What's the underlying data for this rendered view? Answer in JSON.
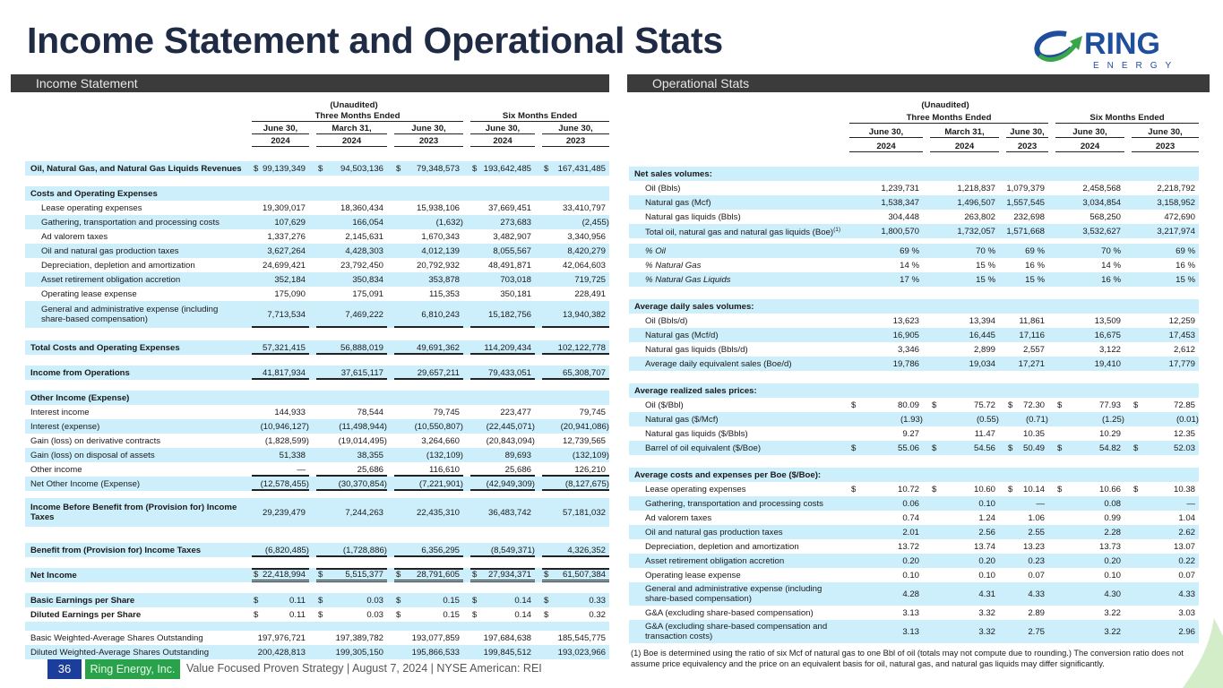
{
  "title": "Income Statement and Operational Stats",
  "logo": {
    "text": "RING",
    "subtext": "ENERGY",
    "colors": {
      "blue": "#1f4e9c",
      "green": "#3aa64a"
    }
  },
  "income_statement": {
    "section_label": "Income Statement",
    "header": {
      "unaudited": "(Unaudited)",
      "three_months": "Three Months Ended",
      "six_months": "Six Months Ended",
      "cols": [
        {
          "month": "June 30,",
          "year": "2024"
        },
        {
          "month": "March 31,",
          "year": "2024"
        },
        {
          "month": "June 30,",
          "year": "2023"
        },
        {
          "month": "June 30,",
          "year": "2024"
        },
        {
          "month": "June 30,",
          "year": "2023"
        }
      ]
    },
    "rows": [
      {
        "label": "Oil, Natural Gas, and Natural Gas Liquids Revenues",
        "values": [
          "99,139,349",
          "94,503,136",
          "79,348,573",
          "193,642,485",
          "167,431,485"
        ]
      },
      {
        "label": "Costs and Operating Expenses",
        "values": [
          "",
          "",
          "",
          "",
          ""
        ]
      },
      {
        "label": "Lease operating expenses",
        "values": [
          "19,309,017",
          "18,360,434",
          "15,938,106",
          "37,669,451",
          "33,410,797"
        ]
      },
      {
        "label": "Gathering, transportation and processing costs",
        "values": [
          "107,629",
          "166,054",
          "(1,632)",
          "273,683",
          "(2,455)"
        ]
      },
      {
        "label": "Ad valorem taxes",
        "values": [
          "1,337,276",
          "2,145,631",
          "1,670,343",
          "3,482,907",
          "3,340,956"
        ]
      },
      {
        "label": "Oil and natural gas production taxes",
        "values": [
          "3,627,264",
          "4,428,303",
          "4,012,139",
          "8,055,567",
          "8,420,279"
        ]
      },
      {
        "label": "Depreciation, depletion and amortization",
        "values": [
          "24,699,421",
          "23,792,450",
          "20,792,932",
          "48,491,871",
          "42,064,603"
        ]
      },
      {
        "label": "Asset retirement obligation accretion",
        "values": [
          "352,184",
          "350,834",
          "353,878",
          "703,018",
          "719,725"
        ]
      },
      {
        "label": "Operating lease expense",
        "values": [
          "175,090",
          "175,091",
          "115,353",
          "350,181",
          "228,491"
        ]
      },
      {
        "label": "General and administrative expense (including share-based compensation)",
        "values": [
          "7,713,534",
          "7,469,222",
          "6,810,243",
          "15,182,756",
          "13,940,382"
        ]
      },
      {
        "label": "Total Costs and Operating Expenses",
        "values": [
          "57,321,415",
          "56,888,019",
          "49,691,362",
          "114,209,434",
          "102,122,778"
        ]
      },
      {
        "label": "Income from Operations",
        "values": [
          "41,817,934",
          "37,615,117",
          "29,657,211",
          "79,433,051",
          "65,308,707"
        ]
      },
      {
        "label": "Other Income (Expense)",
        "values": [
          "",
          "",
          "",
          "",
          ""
        ]
      },
      {
        "label": "Interest income",
        "values": [
          "144,933",
          "78,544",
          "79,745",
          "223,477",
          "79,745"
        ]
      },
      {
        "label": "Interest (expense)",
        "values": [
          "(10,946,127)",
          "(11,498,944)",
          "(10,550,807)",
          "(22,445,071)",
          "(20,941,086)"
        ]
      },
      {
        "label": "Gain (loss) on derivative contracts",
        "values": [
          "(1,828,599)",
          "(19,014,495)",
          "3,264,660",
          "(20,843,094)",
          "12,739,565"
        ]
      },
      {
        "label": "Gain (loss) on disposal of assets",
        "values": [
          "51,338",
          "38,355",
          "(132,109)",
          "89,693",
          "(132,109)"
        ]
      },
      {
        "label": "Other income",
        "values": [
          "—",
          "25,686",
          "116,610",
          "25,686",
          "126,210"
        ]
      },
      {
        "label": "Net Other Income (Expense)",
        "values": [
          "(12,578,455)",
          "(30,370,854)",
          "(7,221,901)",
          "(42,949,309)",
          "(8,127,675)"
        ]
      },
      {
        "label": "Income Before Benefit from (Provision for) Income Taxes",
        "values": [
          "29,239,479",
          "7,244,263",
          "22,435,310",
          "36,483,742",
          "57,181,032"
        ]
      },
      {
        "label": "Benefit from (Provision for) Income Taxes",
        "values": [
          "(6,820,485)",
          "(1,728,886)",
          "6,356,295",
          "(8,549,371)",
          "4,326,352"
        ]
      },
      {
        "label": "Net Income",
        "values": [
          "22,418,994",
          "5,515,377",
          "28,791,605",
          "27,934,371",
          "61,507,384"
        ]
      },
      {
        "label": "Basic Earnings per Share",
        "values": [
          "0.11",
          "0.03",
          "0.15",
          "0.14",
          "0.33"
        ]
      },
      {
        "label": "Diluted Earnings per Share",
        "values": [
          "0.11",
          "0.03",
          "0.15",
          "0.14",
          "0.32"
        ]
      },
      {
        "label": "",
        "values": [
          "",
          "",
          "",
          "",
          ""
        ]
      },
      {
        "label": "Basic Weighted-Average Shares Outstanding",
        "values": [
          "197,976,721",
          "197,389,782",
          "193,077,859",
          "197,684,638",
          "185,545,775"
        ]
      },
      {
        "label": "Diluted Weighted-Average Shares Outstanding",
        "values": [
          "200,428,813",
          "199,305,150",
          "195,866,533",
          "199,845,512",
          "193,023,966"
        ]
      }
    ]
  },
  "operational_stats": {
    "section_label": "Operational Stats",
    "header": {
      "unaudited": "(Unaudited)",
      "three_months": "Three Months Ended",
      "six_months": "Six Months Ended",
      "cols": [
        {
          "month": "June 30,",
          "year": "2024"
        },
        {
          "month": "March 31,",
          "year": "2024"
        },
        {
          "month": "June 30,",
          "year": "2023"
        },
        {
          "month": "June 30,",
          "year": "2024"
        },
        {
          "month": "June 30,",
          "year": "2023"
        }
      ]
    },
    "rows": [
      {
        "label": "Net sales volumes:",
        "values": [
          "",
          "",
          "",
          "",
          ""
        ]
      },
      {
        "label": "Oil (Bbls)",
        "values": [
          "1,239,731",
          "1,218,837",
          "1,079,379",
          "2,458,568",
          "2,218,792"
        ]
      },
      {
        "label": "Natural gas (Mcf)",
        "values": [
          "1,538,347",
          "1,496,507",
          "1,557,545",
          "3,034,854",
          "3,158,952"
        ]
      },
      {
        "label": "Natural gas liquids (Bbls)",
        "values": [
          "304,448",
          "263,802",
          "232,698",
          "568,250",
          "472,690"
        ]
      },
      {
        "label": "Total oil, natural gas and natural gas liquids (Boe)",
        "sup": "(1)",
        "values": [
          "1,800,570",
          "1,732,057",
          "1,571,668",
          "3,532,627",
          "3,217,974"
        ]
      },
      {
        "label": "% Oil",
        "values": [
          "69 %",
          "70 %",
          "69 %",
          "70 %",
          "69 %"
        ]
      },
      {
        "label": "% Natural Gas",
        "values": [
          "14 %",
          "15 %",
          "16 %",
          "14 %",
          "16 %"
        ]
      },
      {
        "label": "% Natural Gas Liquids",
        "values": [
          "17 %",
          "15 %",
          "15 %",
          "16 %",
          "15 %"
        ]
      },
      {
        "label": "Average daily sales volumes:",
        "values": [
          "",
          "",
          "",
          "",
          ""
        ]
      },
      {
        "label": "Oil (Bbls/d)",
        "values": [
          "13,623",
          "13,394",
          "11,861",
          "13,509",
          "12,259"
        ]
      },
      {
        "label": "Natural gas (Mcf/d)",
        "values": [
          "16,905",
          "16,445",
          "17,116",
          "16,675",
          "17,453"
        ]
      },
      {
        "label": "Natural gas liquids (Bbls/d)",
        "values": [
          "3,346",
          "2,899",
          "2,557",
          "3,122",
          "2,612"
        ]
      },
      {
        "label": "Average daily equivalent sales (Boe/d)",
        "values": [
          "19,786",
          "19,034",
          "17,271",
          "19,410",
          "17,779"
        ]
      },
      {
        "label": "Average realized sales prices:",
        "values": [
          "",
          "",
          "",
          "",
          ""
        ]
      },
      {
        "label": "Oil ($/Bbl)",
        "values": [
          "80.09",
          "75.72",
          "72.30",
          "77.93",
          "72.85"
        ]
      },
      {
        "label": "Natural gas ($/Mcf)",
        "values": [
          "(1.93)",
          "(0.55)",
          "(0.71)",
          "(1.25)",
          "(0.01)"
        ]
      },
      {
        "label": "Natural gas liquids ($/Bbls)",
        "values": [
          "9.27",
          "11.47",
          "10.35",
          "10.29",
          "12.35"
        ]
      },
      {
        "label": "Barrel of oil equivalent ($/Boe)",
        "values": [
          "55.06",
          "54.56",
          "50.49",
          "54.82",
          "52.03"
        ]
      },
      {
        "label": "Average costs and expenses per Boe ($/Boe):",
        "values": [
          "",
          "",
          "",
          "",
          ""
        ]
      },
      {
        "label": "Lease operating expenses",
        "values": [
          "10.72",
          "10.60",
          "10.14",
          "10.66",
          "10.38"
        ]
      },
      {
        "label": "Gathering, transportation and processing costs",
        "values": [
          "0.06",
          "0.10",
          "—",
          "0.08",
          "—"
        ]
      },
      {
        "label": "Ad valorem taxes",
        "values": [
          "0.74",
          "1.24",
          "1.06",
          "0.99",
          "1.04"
        ]
      },
      {
        "label": "Oil and natural gas production taxes",
        "values": [
          "2.01",
          "2.56",
          "2.55",
          "2.28",
          "2.62"
        ]
      },
      {
        "label": "Depreciation, depletion and amortization",
        "values": [
          "13.72",
          "13.74",
          "13.23",
          "13.73",
          "13.07"
        ]
      },
      {
        "label": "Asset retirement obligation accretion",
        "values": [
          "0.20",
          "0.20",
          "0.23",
          "0.20",
          "0.22"
        ]
      },
      {
        "label": "Operating lease expense",
        "values": [
          "0.10",
          "0.10",
          "0.07",
          "0.10",
          "0.07"
        ]
      },
      {
        "label": "General and administrative expense (including share-based compensation)",
        "values": [
          "4.28",
          "4.31",
          "4.33",
          "4.30",
          "4.33"
        ]
      },
      {
        "label": "G&A (excluding share-based compensation)",
        "values": [
          "3.13",
          "3.32",
          "2.89",
          "3.22",
          "3.03"
        ]
      },
      {
        "label": "G&A (excluding share-based compensation and transaction costs)",
        "values": [
          "3.13",
          "3.32",
          "2.75",
          "3.22",
          "2.96"
        ]
      }
    ],
    "footnote": "(1) Boe is determined using the ratio of six Mcf of natural gas to one Bbl of oil (totals may not compute due to rounding.) The conversion ratio does not assume price equivalency and the price on an equivalent basis for oil, natural gas, and natural gas liquids may differ significantly."
  },
  "footer": {
    "page": "36",
    "company": "Ring Energy, Inc.",
    "tagline": "Value Focused Proven Strategy  | August 7, 2024 |  NYSE American: REI"
  },
  "currency_symbol": "$"
}
